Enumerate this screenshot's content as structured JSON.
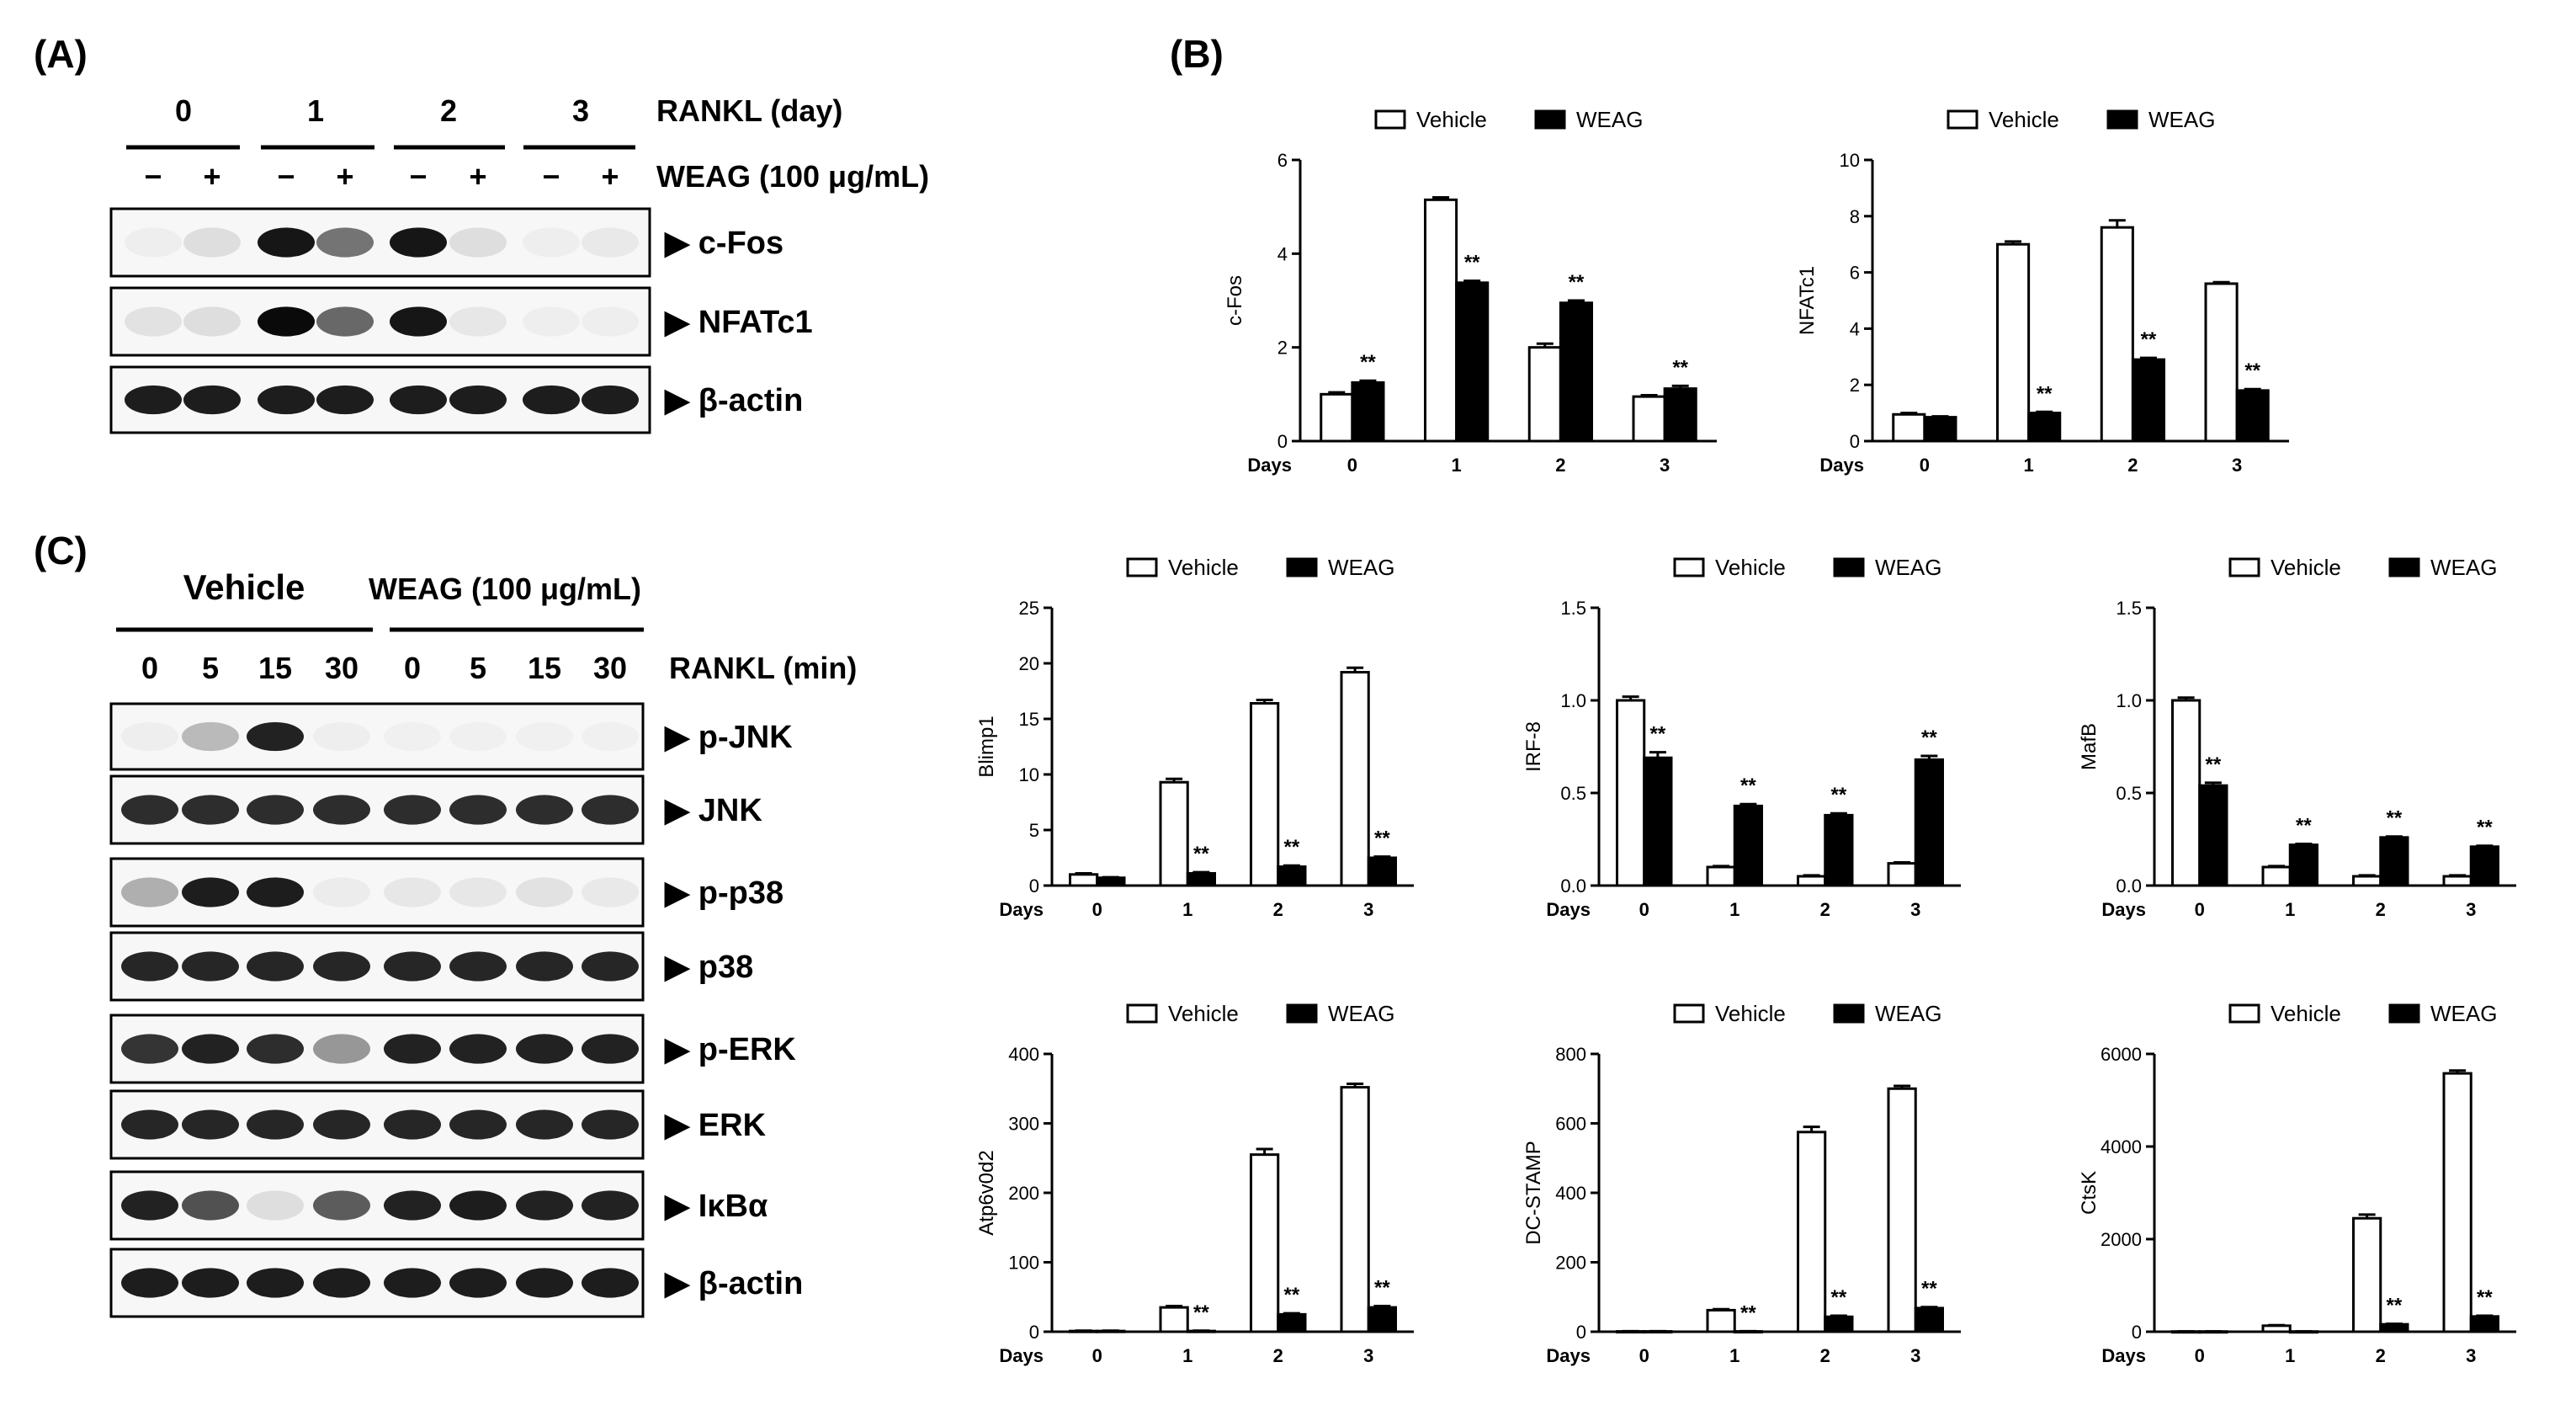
{
  "panels": {
    "A": "(A)",
    "B": "(B)",
    "C": "(C)"
  },
  "panel_a": {
    "days": [
      "0",
      "1",
      "2",
      "3"
    ],
    "rankl_label": "RANKL (day)",
    "weag_label": "WEAG (100 μg/mL)",
    "signs": [
      "−",
      "+",
      "−",
      "+",
      "−",
      "+",
      "−",
      "+"
    ],
    "blots": [
      {
        "label": "▶ c-Fos",
        "intensities": [
          0.03,
          0.1,
          0.95,
          0.55,
          0.95,
          0.1,
          0.03,
          0.05
        ]
      },
      {
        "label": "▶ NFATc1",
        "intensities": [
          0.08,
          0.1,
          1.0,
          0.6,
          0.95,
          0.06,
          0.03,
          0.03
        ]
      },
      {
        "label": "▶ β-actin",
        "intensities": [
          0.92,
          0.92,
          0.92,
          0.92,
          0.92,
          0.92,
          0.92,
          0.92
        ]
      }
    ]
  },
  "panel_c": {
    "vehicle_label": "Vehicle",
    "weag_label": "WEAG (100 μg/mL)",
    "times": [
      "0",
      "5",
      "15",
      "30",
      "0",
      "5",
      "15",
      "30"
    ],
    "rankl_label": "RANKL (min)",
    "blots": [
      {
        "label": "▶ p-JNK",
        "intensities": [
          0.03,
          0.25,
          0.9,
          0.03,
          0.02,
          0.02,
          0.02,
          0.02
        ]
      },
      {
        "label": "▶ JNK",
        "intensities": [
          0.85,
          0.85,
          0.85,
          0.85,
          0.85,
          0.85,
          0.85,
          0.85
        ]
      },
      {
        "label": "▶ p-p38",
        "intensities": [
          0.3,
          0.92,
          0.92,
          0.04,
          0.06,
          0.06,
          0.08,
          0.05
        ]
      },
      {
        "label": "▶ p38",
        "intensities": [
          0.88,
          0.88,
          0.88,
          0.88,
          0.88,
          0.88,
          0.88,
          0.88
        ]
      },
      {
        "label": "▶ p-ERK",
        "intensities": [
          0.82,
          0.9,
          0.85,
          0.4,
          0.9,
          0.9,
          0.9,
          0.9
        ]
      },
      {
        "label": "▶ ERK",
        "intensities": [
          0.88,
          0.88,
          0.88,
          0.88,
          0.88,
          0.88,
          0.88,
          0.88
        ]
      },
      {
        "label": "▶ IκBα",
        "intensities": [
          0.9,
          0.7,
          0.1,
          0.65,
          0.9,
          0.92,
          0.9,
          0.9
        ]
      },
      {
        "label": "▶ β-actin",
        "intensities": [
          0.92,
          0.92,
          0.92,
          0.92,
          0.92,
          0.92,
          0.92,
          0.92
        ]
      }
    ]
  },
  "chart_data": [
    {
      "type": "bar",
      "panel": "B",
      "ylabel": "c-Fos",
      "xlabel": "Days",
      "categories": [
        "0",
        "1",
        "2",
        "3"
      ],
      "ylim": [
        0,
        6
      ],
      "yticks": [
        "0",
        "2",
        "4",
        "6"
      ],
      "series": [
        {
          "name": "Vehicle",
          "values": [
            1.0,
            5.15,
            2.0,
            0.95
          ],
          "errors": [
            0.04,
            0.05,
            0.08,
            0.03
          ]
        },
        {
          "name": "WEAG",
          "values": [
            1.25,
            3.38,
            2.95,
            1.12
          ],
          "errors": [
            0.04,
            0.04,
            0.05,
            0.06
          ]
        }
      ],
      "annotations": [
        "**",
        "**",
        "**",
        "**"
      ]
    },
    {
      "type": "bar",
      "panel": "B",
      "ylabel": "NFATc1",
      "xlabel": "Days",
      "categories": [
        "0",
        "1",
        "2",
        "3"
      ],
      "ylim": [
        0,
        10
      ],
      "yticks": [
        "0",
        "2",
        "4",
        "6",
        "8",
        "10"
      ],
      "series": [
        {
          "name": "Vehicle",
          "values": [
            0.95,
            7.0,
            7.6,
            5.6
          ],
          "errors": [
            0.05,
            0.1,
            0.25,
            0.05
          ]
        },
        {
          "name": "WEAG",
          "values": [
            0.85,
            1.0,
            2.9,
            1.8
          ],
          "errors": [
            0.03,
            0.04,
            0.06,
            0.05
          ]
        }
      ],
      "annotations": [
        "",
        "**",
        "**",
        "**"
      ]
    },
    {
      "type": "bar",
      "panel": "C",
      "ylabel": "Blimp1",
      "xlabel": "Days",
      "categories": [
        "0",
        "1",
        "2",
        "3"
      ],
      "ylim": [
        0,
        25
      ],
      "yticks": [
        "0",
        "5",
        "10",
        "15",
        "20",
        "25"
      ],
      "series": [
        {
          "name": "Vehicle",
          "values": [
            1.0,
            9.3,
            16.4,
            19.2
          ],
          "errors": [
            0.1,
            0.3,
            0.3,
            0.4
          ]
        },
        {
          "name": "WEAG",
          "values": [
            0.7,
            1.1,
            1.7,
            2.5
          ],
          "errors": [
            0.05,
            0.1,
            0.1,
            0.1
          ]
        }
      ],
      "annotations": [
        "",
        "**",
        "**",
        "**"
      ]
    },
    {
      "type": "bar",
      "panel": "C",
      "ylabel": "IRF-8",
      "xlabel": "Days",
      "categories": [
        "0",
        "1",
        "2",
        "3"
      ],
      "ylim": [
        0,
        1.5
      ],
      "yticks": [
        "0.0",
        "0.5",
        "1.0",
        "1.5"
      ],
      "series": [
        {
          "name": "Vehicle",
          "values": [
            1.0,
            0.1,
            0.05,
            0.12
          ],
          "errors": [
            0.02,
            0.005,
            0.005,
            0.005
          ]
        },
        {
          "name": "WEAG",
          "values": [
            0.69,
            0.43,
            0.38,
            0.68
          ],
          "errors": [
            0.03,
            0.01,
            0.01,
            0.02
          ]
        }
      ],
      "annotations": [
        "**",
        "**",
        "**",
        "**"
      ]
    },
    {
      "type": "bar",
      "panel": "C",
      "ylabel": "MafB",
      "xlabel": "Days",
      "categories": [
        "0",
        "1",
        "2",
        "3"
      ],
      "ylim": [
        0,
        1.5
      ],
      "yticks": [
        "0.0",
        "0.5",
        "1.0",
        "1.5"
      ],
      "series": [
        {
          "name": "Vehicle",
          "values": [
            1.0,
            0.1,
            0.05,
            0.05
          ],
          "errors": [
            0.015,
            0.005,
            0.005,
            0.005
          ]
        },
        {
          "name": "WEAG",
          "values": [
            0.54,
            0.22,
            0.26,
            0.21
          ],
          "errors": [
            0.015,
            0.005,
            0.005,
            0.005
          ]
        }
      ],
      "annotations": [
        "**",
        "**",
        "**",
        "**"
      ]
    },
    {
      "type": "bar",
      "panel": "C",
      "ylabel": "Atp6v0d2",
      "xlabel": "Days",
      "categories": [
        "0",
        "1",
        "2",
        "3"
      ],
      "ylim": [
        0,
        400
      ],
      "yticks": [
        "0",
        "100",
        "200",
        "300",
        "400"
      ],
      "series": [
        {
          "name": "Vehicle",
          "values": [
            1,
            35,
            255,
            352
          ],
          "errors": [
            0.5,
            2,
            8,
            5
          ]
        },
        {
          "name": "WEAG",
          "values": [
            1,
            1,
            25,
            35
          ],
          "errors": [
            0.5,
            0.5,
            1.5,
            2
          ]
        }
      ],
      "annotations": [
        "",
        "**",
        "**",
        "**"
      ]
    },
    {
      "type": "bar",
      "panel": "C",
      "ylabel": "DC-STAMP",
      "xlabel": "Days",
      "categories": [
        "0",
        "1",
        "2",
        "3"
      ],
      "ylim": [
        0,
        800
      ],
      "yticks": [
        "0",
        "200",
        "400",
        "600",
        "800"
      ],
      "series": [
        {
          "name": "Vehicle",
          "values": [
            1,
            62,
            575,
            700
          ],
          "errors": [
            0.5,
            3,
            15,
            8
          ]
        },
        {
          "name": "WEAG",
          "values": [
            1,
            1,
            43,
            68
          ],
          "errors": [
            0.5,
            0.5,
            3,
            3
          ]
        }
      ],
      "annotations": [
        "",
        "**",
        "**",
        "**"
      ]
    },
    {
      "type": "bar",
      "panel": "C",
      "ylabel": "CtsK",
      "xlabel": "Days",
      "categories": [
        "0",
        "1",
        "2",
        "3"
      ],
      "ylim": [
        0,
        6000
      ],
      "yticks": [
        "0",
        "2000",
        "4000",
        "6000"
      ],
      "series": [
        {
          "name": "Vehicle",
          "values": [
            5,
            130,
            2450,
            5580
          ],
          "errors": [
            2,
            10,
            80,
            60
          ]
        },
        {
          "name": "WEAG",
          "values": [
            5,
            5,
            160,
            330
          ],
          "errors": [
            2,
            2,
            10,
            15
          ]
        }
      ],
      "annotations": [
        "",
        "",
        "**",
        "**"
      ]
    }
  ],
  "colors": {
    "vehicle": "#ffffff",
    "weag": "#000000",
    "axis": "#000000",
    "blot_bg": "#f7f7f7"
  }
}
